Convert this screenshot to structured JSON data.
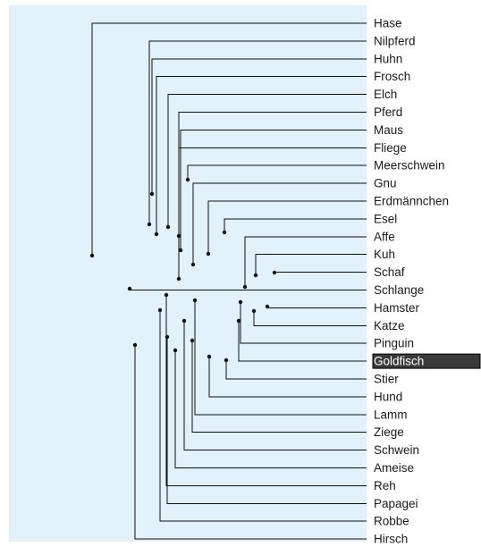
{
  "colors": {
    "panel": "#e3f1fb",
    "line": "#111111",
    "selection_bg": "#3a3a3a",
    "selection_text": "#ffffff"
  },
  "selected_leaf": "Goldfisch",
  "leaves": [
    "Hase",
    "Nilpferd",
    "Huhn",
    "Frosch",
    "Elch",
    "Pferd",
    "Maus",
    "Fliege",
    "Meerschwein",
    "Gnu",
    "Erdmännchen",
    "Esel",
    "Affe",
    "Kuh",
    "Schaf",
    "Schlange",
    "Hamster",
    "Katze",
    "Pinguin",
    "Goldfisch",
    "Stier",
    "Hund",
    "Lamm",
    "Ziege",
    "Schwein",
    "Ameise",
    "Reh",
    "Papagei",
    "Robbe",
    "Hirsch"
  ]
}
